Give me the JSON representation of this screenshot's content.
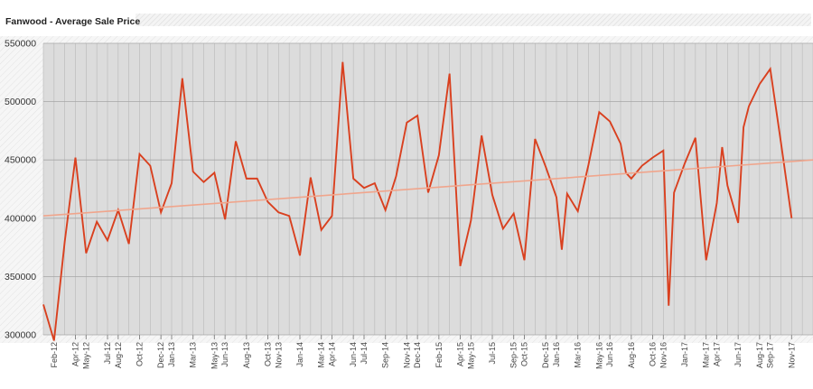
{
  "chart_data": {
    "type": "line",
    "title": "Fanwood - Average Sale Price",
    "xlabel": "",
    "ylabel": "",
    "ylim": [
      300000,
      550000
    ],
    "yticks": [
      300000,
      350000,
      400000,
      450000,
      500000,
      550000
    ],
    "ytick_labels": [
      "300000",
      "350000",
      "400000",
      "450000",
      "500000",
      "550000"
    ],
    "x_start": "Jan-12",
    "x_end": "Dec-17",
    "xtick_labels": [
      "Feb-12",
      "Apr-12",
      "May-12",
      "Jul-12",
      "Aug-12",
      "Oct-12",
      "Dec-12",
      "Jan-13",
      "Mar-13",
      "May-13",
      "Jun-13",
      "Aug-13",
      "Oct-13",
      "Nov-13",
      "Jan-14",
      "Mar-14",
      "Apr-14",
      "Jun-14",
      "Jul-14",
      "Sep-14",
      "Nov-14",
      "Dec-14",
      "Feb-15",
      "Apr-15",
      "May-15",
      "Jul-15",
      "Sep-15",
      "Oct-15",
      "Dec-15",
      "Jan-16",
      "Mar-16",
      "May-16",
      "Jun-16",
      "Aug-16",
      "Oct-16",
      "Nov-16",
      "Jan-17",
      "Mar-17",
      "Apr-17",
      "Jun-17",
      "Aug-17",
      "Sep-17",
      "Nov-17"
    ],
    "grid": true,
    "series": [
      {
        "kind": "line",
        "color": "#d9401f",
        "points": [
          [
            "Jan-12",
            326000
          ],
          [
            "Feb-12",
            295000
          ],
          [
            "Mar-12",
            380000
          ],
          [
            "Apr-12",
            452000
          ],
          [
            "May-12",
            370000
          ],
          [
            "Jun-12",
            397000
          ],
          [
            "Jul-12",
            381000
          ],
          [
            "Aug-12",
            407000
          ],
          [
            "Sep-12",
            378000
          ],
          [
            "Oct-12",
            455000
          ],
          [
            "Nov-12",
            445000
          ],
          [
            "Dec-12",
            405000
          ],
          [
            "Jan-13",
            430000
          ],
          [
            "Feb-13",
            520000
          ],
          [
            "Mar-13",
            440000
          ],
          [
            "Apr-13",
            431000
          ],
          [
            "May-13",
            439000
          ],
          [
            "Jun-13",
            399000
          ],
          [
            "Jul-13",
            466000
          ],
          [
            "Aug-13",
            434000
          ],
          [
            "Sep-13",
            434000
          ],
          [
            "Oct-13",
            414000
          ],
          [
            "Nov-13",
            405000
          ],
          [
            "Dec-13",
            402000
          ],
          [
            "Jan-14",
            368000
          ],
          [
            "Feb-14",
            435000
          ],
          [
            "Mar-14",
            390000
          ],
          [
            "Apr-14",
            402000
          ],
          [
            "May-14",
            534000
          ],
          [
            "Jun-14",
            434000
          ],
          [
            "Jul-14",
            426000
          ],
          [
            "Aug-14",
            430000
          ],
          [
            "Sep-14",
            407000
          ],
          [
            "Oct-14",
            436000
          ],
          [
            "Nov-14",
            482000
          ],
          [
            "Dec-14",
            488000
          ],
          [
            "Jan-15",
            422000
          ],
          [
            "Feb-15",
            454000
          ],
          [
            "Mar-15",
            524000
          ],
          [
            "Apr-15",
            359000
          ],
          [
            "May-15",
            398000
          ],
          [
            "Jun-15",
            471000
          ],
          [
            "Jul-15",
            420000
          ],
          [
            "Aug-15",
            391000
          ],
          [
            "Sep-15",
            404000
          ],
          [
            "Oct-15",
            364000
          ],
          [
            "Nov-15",
            468000
          ],
          [
            "Dec-15",
            444000
          ],
          [
            "Jan-16",
            418000
          ],
          [
            "Jan-16",
            373000
          ],
          [
            "Feb-16",
            421000
          ],
          [
            "Mar-16",
            406000
          ],
          [
            "Apr-16",
            446000
          ],
          [
            "May-16",
            491000
          ],
          [
            "Jun-16",
            483000
          ],
          [
            "Jul-16",
            464000
          ],
          [
            "Jul-16",
            439000
          ],
          [
            "Aug-16",
            434000
          ],
          [
            "Sep-16",
            445000
          ],
          [
            "Oct-16",
            452000
          ],
          [
            "Nov-16",
            458000
          ],
          [
            "Nov-16",
            325000
          ],
          [
            "Dec-16",
            422000
          ],
          [
            "Jan-17",
            447000
          ],
          [
            "Feb-17",
            469000
          ],
          [
            "Mar-17",
            364000
          ],
          [
            "Apr-17",
            413000
          ],
          [
            "Apr-17",
            461000
          ],
          [
            "May-17",
            428000
          ],
          [
            "Jun-17",
            396000
          ],
          [
            "Jun-17",
            478000
          ],
          [
            "Jul-17",
            496000
          ],
          [
            "Aug-17",
            515000
          ],
          [
            "Sep-17",
            528000
          ],
          [
            "Oct-17",
            465000
          ],
          [
            "Nov-17",
            400000
          ]
        ]
      },
      {
        "kind": "trendline",
        "color": "#f0a58c",
        "start": [
          "Jan-12",
          402000
        ],
        "end": [
          "Dec-17",
          450000
        ]
      }
    ]
  }
}
